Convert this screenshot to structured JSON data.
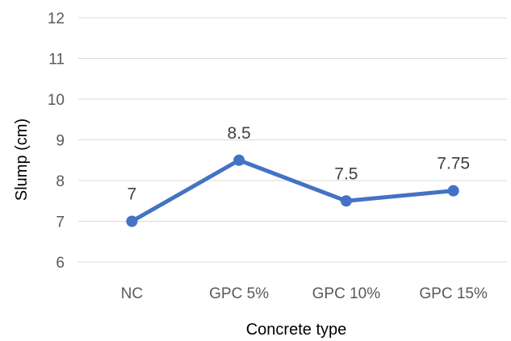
{
  "chart_data": {
    "type": "line",
    "title": "",
    "xlabel": "Concrete type",
    "ylabel": "Slump (cm)",
    "categories": [
      "NC",
      "GPC 5%",
      "GPC 10%",
      "GPC 15%"
    ],
    "series": [
      {
        "values": [
          7,
          8.5,
          7.5,
          7.75
        ],
        "data_labels": [
          "7",
          "8.5",
          "7.5",
          "7.75"
        ],
        "color": "#4472c4"
      }
    ],
    "ylim": [
      6,
      12
    ],
    "yticks": [
      6,
      7,
      8,
      9,
      10,
      11,
      12
    ],
    "grid": true,
    "legend": "none"
  }
}
